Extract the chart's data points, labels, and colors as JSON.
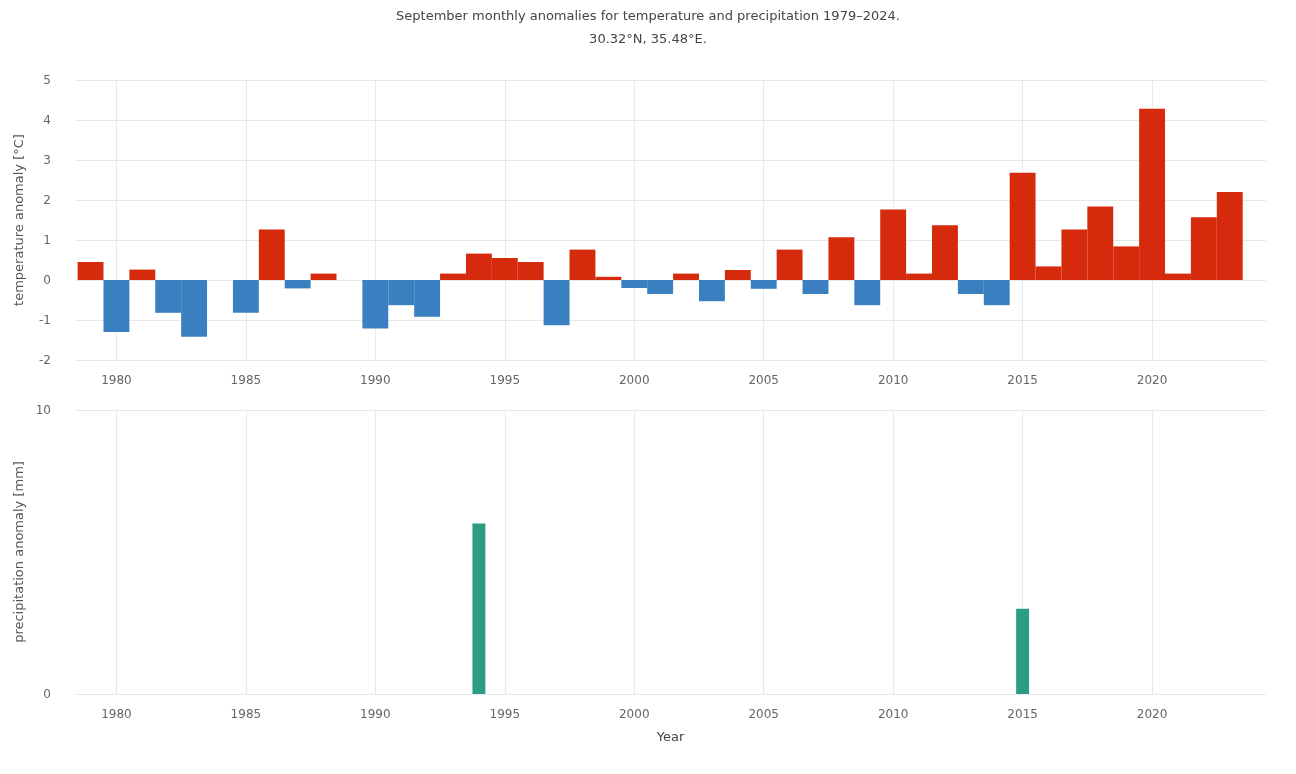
{
  "chart_data": [
    {
      "type": "bar",
      "title": "September monthly anomalies for temperature and precipitation 1979–2024.",
      "subtitle": "30.32°N, 35.48°E.",
      "ylabel": "temperature anomaly [°C]",
      "x": [
        1979,
        1980,
        1981,
        1982,
        1983,
        1984,
        1985,
        1986,
        1987,
        1988,
        1989,
        1990,
        1991,
        1992,
        1993,
        1994,
        1995,
        1996,
        1997,
        1998,
        1999,
        2000,
        2001,
        2002,
        2003,
        2004,
        2005,
        2006,
        2007,
        2008,
        2009,
        2010,
        2011,
        2012,
        2013,
        2014,
        2015,
        2016,
        2017,
        2018,
        2019,
        2020,
        2021,
        2022,
        2023
      ],
      "values": [
        0.45,
        -1.3,
        0.26,
        -0.82,
        -1.42,
        0,
        -0.82,
        1.26,
        -0.21,
        0.16,
        0,
        -1.21,
        -0.63,
        -0.92,
        0.16,
        0.66,
        0.55,
        0.45,
        -1.13,
        0.76,
        0.08,
        -0.2,
        -0.35,
        0.16,
        -0.53,
        0.25,
        -0.22,
        0.76,
        -0.35,
        1.07,
        -0.63,
        1.76,
        0.16,
        1.37,
        -0.35,
        -0.63,
        2.68,
        0.34,
        1.26,
        1.84,
        0.84,
        4.28,
        0.16,
        1.57,
        2.2
      ],
      "colors": [
        "#d62a0c",
        "#3a7fc0",
        "#d62a0c",
        "#3a7fc0",
        "#3a7fc0",
        "#3a7fc0",
        "#3a7fc0",
        "#d62a0c",
        "#3a7fc0",
        "#d62a0c",
        "#3a7fc0",
        "#3a7fc0",
        "#3a7fc0",
        "#3a7fc0",
        "#d62a0c",
        "#d62a0c",
        "#d62a0c",
        "#d62a0c",
        "#3a7fc0",
        "#d62a0c",
        "#d62a0c",
        "#3a7fc0",
        "#3a7fc0",
        "#d62a0c",
        "#3a7fc0",
        "#d62a0c",
        "#3a7fc0",
        "#d62a0c",
        "#3a7fc0",
        "#d62a0c",
        "#3a7fc0",
        "#d62a0c",
        "#d62a0c",
        "#d62a0c",
        "#3a7fc0",
        "#3a7fc0",
        "#d62a0c",
        "#d62a0c",
        "#d62a0c",
        "#d62a0c",
        "#d62a0c",
        "#d62a0c",
        "#d62a0c",
        "#d62a0c",
        "#d62a0c"
      ],
      "xlim": [
        1978.4,
        2024.4
      ],
      "xticks": [
        1980,
        1985,
        1990,
        1995,
        2000,
        2005,
        2010,
        2015,
        2020
      ],
      "ylim": [
        -2,
        5
      ],
      "yticks": [
        -2,
        -1,
        0,
        1,
        2,
        3,
        4,
        5
      ],
      "grid": true
    },
    {
      "type": "bar",
      "xlabel": "Year",
      "ylabel": "precipitation anomaly [mm]",
      "x": [
        1979,
        1980,
        1981,
        1982,
        1983,
        1984,
        1985,
        1986,
        1987,
        1988,
        1989,
        1990,
        1991,
        1992,
        1993,
        1994,
        1995,
        1996,
        1997,
        1998,
        1999,
        2000,
        2001,
        2002,
        2003,
        2004,
        2005,
        2006,
        2007,
        2008,
        2009,
        2010,
        2011,
        2012,
        2013,
        2014,
        2015,
        2016,
        2017,
        2018,
        2019,
        2020,
        2021,
        2022,
        2023
      ],
      "values": [
        0,
        0,
        0,
        0,
        0,
        0,
        0,
        0,
        0,
        0,
        0,
        0,
        0,
        0,
        0,
        6.0,
        0,
        0,
        0,
        0,
        0,
        0,
        0,
        0,
        0,
        0,
        0,
        0,
        0,
        0,
        0,
        0,
        0,
        0,
        0,
        0,
        3.0,
        0,
        0,
        0,
        0,
        0,
        0,
        0,
        0
      ],
      "color": "#2a9d82",
      "xlim": [
        1978.4,
        2024.4
      ],
      "xticks": [
        1980,
        1985,
        1990,
        1995,
        2000,
        2005,
        2010,
        2015,
        2020
      ],
      "ylim": [
        0,
        10
      ],
      "yticks": [
        0,
        10
      ],
      "grid": true
    }
  ]
}
